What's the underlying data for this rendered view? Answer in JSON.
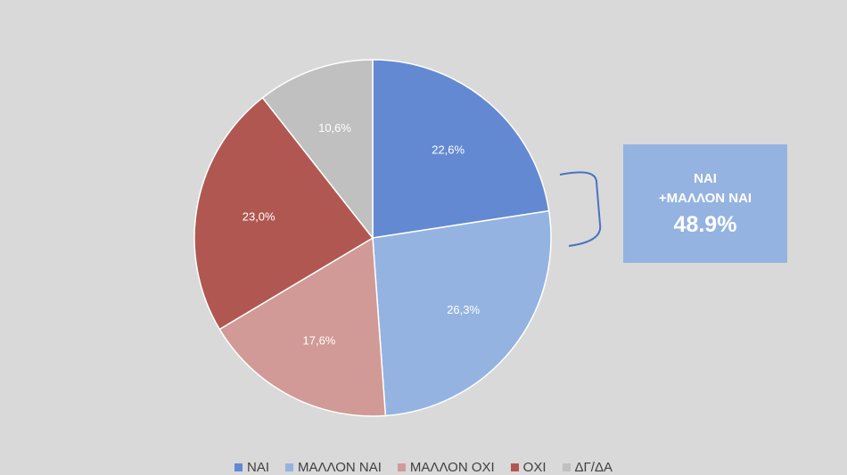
{
  "chart_data": {
    "type": "pie",
    "categories": [
      "ΝΑΙ",
      "ΜΑΛΛΟΝ ΝΑΙ",
      "ΜΑΛΛΟΝ ΟΧΙ",
      "ΟΧΙ",
      "ΔΓ/ΔΑ"
    ],
    "values": [
      22.6,
      26.3,
      17.6,
      23.0,
      10.6
    ],
    "data_labels": [
      "22,6%",
      "26,3%",
      "17,6%",
      "23,0%",
      "10,6%"
    ],
    "colors": [
      "#6389d2",
      "#95b3e0",
      "#d19a96",
      "#b15751",
      "#c0c0c0"
    ],
    "legend_position": "bottom"
  },
  "callout": {
    "line1": "ΝΑΙ",
    "line2": "+ΜΑΛΛΟΝ ΝΑΙ",
    "value": "48.9%",
    "color": "#95b3e0"
  },
  "bracket_color": "#4a72c2",
  "background_color": "#d9d9d9"
}
